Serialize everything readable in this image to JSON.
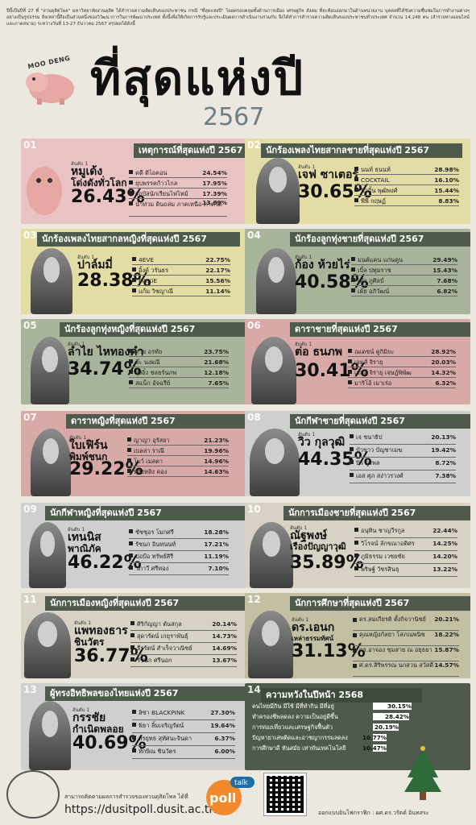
{
  "intro": "ปีนี้เป็นปีที่ 27 ที่ \"สวนดุสิตโพล\" มหาวิทยาลัยสวนดุสิต ได้สำรวจความคิดเห็นของประชาชน กรณี \"ที่สุดแห่งปี\" โดยครอบคลุมทั้งด้านการเมือง เศรษฐกิจ สังคม ที่สะท้อนออกมาในด้านหน่วยงาน บุคคลที่ได้รับความชื่นชมในการทำงานต่างๆ อย่างเป็นรูปธรรม สิ่งเหล่านี้ถือเป็นส่วนหนึ่งของวิวัฒนาการในการพัฒนาประเทศ ทั้งนี้เพื่อให้เกิดการรับรู้และประเมินผลการดำเนินงานร่วมกัน จึงได้ทำการสำรวจความคิดเห็นของประชาชนทั่วประเทศ จำนวน 14,248 คน (สำรวจทางออนไลน์และภาคสนาม) ระหว่างวันที่ 13-27 ธันวาคม 2567 สรุปผลได้ดังนี้",
  "header": {
    "moo_deng": "MOO DENG",
    "title": "ที่สุดแห่งปี",
    "year": "2567"
  },
  "rank_label": "อันดับ 1",
  "cards": [
    {
      "num": "01",
      "title": "เหตุการณ์ที่สุดแห่งปี 2567",
      "winner": [
        "หมูเด้ง",
        "โด่งดังทั่วโลก"
      ],
      "pct": "26.43%",
      "others": [
        [
          "คดี ดิไอคอน",
          "24.54%"
        ],
        [
          "ยุบพรรคก้าวไกล",
          "17.95%"
        ],
        [
          "รถบัสนักเรียนไฟไหม้",
          "17.39%"
        ],
        [
          "น้ำท่วม ดินถล่ม ภาคเหนือ-ภาคใต้",
          "13.69%"
        ]
      ]
    },
    {
      "num": "02",
      "title": "นักร้องเพลงไทยสากลชายที่สุดแห่งปี 2567",
      "winner": [
        "เจฟ ซาเตอร์"
      ],
      "pct": "30.65%",
      "others": [
        [
          "นนท์ ธนนท์",
          "28.98%"
        ],
        [
          "COCKTAIL",
          "16.10%"
        ],
        [
          "บิวกิ้น พุฒิพงศ์",
          "15.44%"
        ],
        [
          "พีพี กฤษฏ์",
          "8.83%"
        ]
      ]
    },
    {
      "num": "03",
      "title": "นักร้องเพลงไทยสากลหญิงที่สุดแห่งปี 2567",
      "winner": [
        "ปาล์มมี่"
      ],
      "pct": "28.38%",
      "others": [
        [
          "4EVE",
          "22.75%"
        ],
        [
          "อิ้งค์ วรันธร",
          "22.17%"
        ],
        [
          "PiXXiE",
          "15.56%"
        ],
        [
          "แก้ม วิชญาณี",
          "11.14%"
        ]
      ]
    },
    {
      "num": "04",
      "title": "นักร้องลูกทุ่งชายที่สุดแห่งปี 2567",
      "winner": [
        "ก้อง ห้วยไร่"
      ],
      "pct": "40.58%",
      "others": [
        [
          "มนต์แคน แก่นคูน",
          "29.49%"
        ],
        [
          "เบิ้ล ปทุมราช",
          "15.43%"
        ],
        [
          "เต๋า ภูศิลป์",
          "7.68%"
        ],
        [
          "เต้ย อภิวัฒน์",
          "6.82%"
        ]
      ]
    },
    {
      "num": "05",
      "title": "นักร้องลูกทุ่งหญิงที่สุดแห่งปี 2567",
      "winner": [
        "ลำไย ไหทองคำ"
      ],
      "pct": "34.74%",
      "others": [
        [
          "ต่าย อรทัย",
          "23.75%"
        ],
        [
          "จ๊ะ นงผณี",
          "21.68%"
        ],
        [
          "อุ๋งอิ๋ง ชลธร์นภพ",
          "12.18%"
        ],
        [
          "สแน็ก อัจฉรีย์",
          "7.65%"
        ]
      ]
    },
    {
      "num": "06",
      "title": "ดาราชายที่สุดแห่งปี 2567",
      "winner": [
        "ต่อ ธนภพ"
      ],
      "pct": "30.41%",
      "others": [
        [
          "ณเดชน์ คูกิมิยะ",
          "28.92%"
        ],
        [
          "เจมส์ จิรายุ",
          "20.03%"
        ],
        [
          "เจมส์ จิรายุ เจษฎ์พิพัฒ",
          "14.32%"
        ],
        [
          "มาริโอ้ เมาเร่อ",
          "6.32%"
        ]
      ]
    },
    {
      "num": "07",
      "title": "ดาราหญิงที่สุดแห่งปี 2567",
      "winner": [
        "ใบเฟิร์น",
        "พิมพ์ชนก"
      ],
      "pct": "29.22%",
      "others": [
        [
          "ญาญ่า อุรัสยา",
          "21.23%"
        ],
        [
          "เบลล่า ราณี",
          "19.96%"
        ],
        [
          "โบว์ เมลดา",
          "14.96%"
        ],
        [
          "หลิงหลิง คอง",
          "14.63%"
        ]
      ]
    },
    {
      "num": "08",
      "title": "นักกีฬาชายที่สุดแห่งปี 2567",
      "winner": [
        "วิว กุลวุฒิ"
      ],
      "pct": "44.35%",
      "others": [
        [
          "เจ ชนาธิป",
          "20.13%"
        ],
        [
          "บัวขาว บัญชาเมฆ",
          "19.42%"
        ],
        [
          "บิว ภูริพล",
          "8.72%"
        ],
        [
          "เอส ศุภ สง่าวรวงศ์",
          "7.38%"
        ]
      ]
    },
    {
      "num": "09",
      "title": "นักกีฬาหญิงที่สุดแห่งปี 2567",
      "winner": [
        "เทนนิส",
        "พาณิภัค"
      ],
      "pct": "46.22%",
      "others": [
        [
          "ชัชชุอร โมกศรี",
          "18.28%"
        ],
        [
          "รัชนก อินทนนท์",
          "17.21%"
        ],
        [
          "ปอป้อ ทรัพย์สิรี",
          "11.19%"
        ],
        [
          "วิภาวี ศรีทอง",
          "7.10%"
        ]
      ]
    },
    {
      "num": "10",
      "title": "นักการเมืองชายที่สุดแห่งปี 2567",
      "winner": [
        "ณัฐพงษ์",
        "เรืองปัญญาวุฒิ"
      ],
      "pct": "35.89%",
      "others": [
        [
          "อนุทิน ชาญวีรกูล",
          "22.44%"
        ],
        [
          "วิโรจน์ ลักขณาอดิศร",
          "14.25%"
        ],
        [
          "ภูมิธรรม เวชยชัย",
          "14.20%"
        ],
        [
          "พริษฐ์ วัชรสินธุ",
          "13.22%"
        ]
      ]
    },
    {
      "num": "11",
      "title": "นักการเมืองหญิงที่สุดแห่งปี 2567",
      "winner": [
        "แพทองธาร",
        "ชินวัตร"
      ],
      "pct": "36.77%",
      "others": [
        [
          "ศิริกัญญา ตันสกุล",
          "20.14%"
        ],
        [
          "สุดารัตน์ เกยุราพันธุ์",
          "14.73%"
        ],
        [
          "ธีรรัตน์ สำเร็จวาณิชย์",
          "14.69%"
        ],
        [
          "รัชนก ศรีนอก",
          "13.67%"
        ]
      ]
    },
    {
      "num": "12",
      "title": "นักการศึกษาที่สุดแห่งปี 2567",
      "winner": [
        "ดร.เอนก",
        "เหล่าธรรมทัศน์"
      ],
      "pct": "31.13%",
      "others": [
        [
          "ดร.สมเกียรติ ตั้งกิจวานิชย์",
          "20.21%"
        ],
        [
          "คุณหญิงกัลยา โสภณพนิช",
          "18.22%"
        ],
        [
          "ดร.อาจอง ชุมสาย ณ อยุธยา",
          "15.87%"
        ],
        [
          "ศ.ดร.สิริพรรณ นกสวน สวัสดี",
          "14.57%"
        ]
      ]
    },
    {
      "num": "13",
      "title": "ผู้ทรงอิทธิพลของไทยแห่งปี 2567",
      "winner": [
        "กรรชัย",
        "กำเนิดพลอย"
      ],
      "pct": "40.69%",
      "others": [
        [
          "ลิซ่า BLACKPINK",
          "27.30%"
        ],
        [
          "พิธา ลิ้มเจริญรัตน์",
          "19.64%"
        ],
        [
          "สรยุทธ สุทัศนะจินดา",
          "6.37%"
        ],
        [
          "ทักษิณ ชินวัตร",
          "6.00%"
        ]
      ]
    }
  ],
  "hopes": {
    "num": "14",
    "title": "ความหวังในปีหน้า 2568",
    "items": [
      {
        "label": "คนไทยมีกิน มีใช้ มีที่ทำกิน มีที่อยู่",
        "value": "30.15%",
        "frac": 0.3015
      },
      {
        "label": "ทำครองชีพลดลง ความเป็นอยู่ดีขึ้น",
        "value": "28.42%",
        "frac": 0.2842
      },
      {
        "label": "การท่องเที่ยวและเศรษฐกิจฟื้นตัว",
        "value": "20.19%",
        "frac": 0.2019
      },
      {
        "label": "ปัญหายาเสพติดและอาชญากรรมลดลง",
        "value": "10.77%",
        "frac": 0.1077
      },
      {
        "label": "การศึกษาดี ทันสมัย เท่าทันเทคโนโลยี",
        "value": "10.47%",
        "frac": 0.1047
      }
    ]
  },
  "footer": {
    "survey_text": "สามารถติดตามผลการสำรวจของสวนดุสิตโพล ได้ที่",
    "url": "https://dusitpoll.dusit.ac.th",
    "poll_brand": "poll",
    "poll_talk": "talk",
    "design_credit": "ออกแบบอินโฟกราฟิก : ผศ.ดร.วรัตต์ อินทสระ"
  },
  "colors": {
    "bar": "#4e5a4b",
    "pink": "#e9c3c3",
    "yellow": "#e3dca4",
    "green": "#a8b59a"
  }
}
